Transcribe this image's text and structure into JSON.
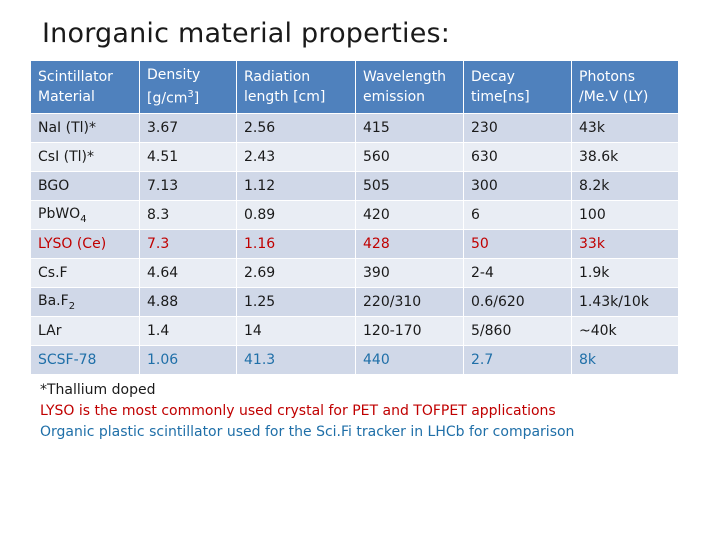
{
  "title": "Inorganic material properties:",
  "table": {
    "headers": [
      {
        "line1": "Scintillator",
        "line2": "Material"
      },
      {
        "line1": "Density",
        "line2": "[g/cm",
        "sup": "3",
        "after": "]"
      },
      {
        "line1": "Radiation",
        "line2": "length [cm]"
      },
      {
        "line1": "Wavelength",
        "line2": "emission"
      },
      {
        "line1": "Decay",
        "line2": "time[ns]"
      },
      {
        "line1": "Photons",
        "line2": "/Me.V (LY)"
      }
    ],
    "rows": [
      {
        "material": "NaI (Tl)*",
        "density": "3.67",
        "radlen": "2.56",
        "wavelength": "415",
        "decay": "230",
        "photons": "43k"
      },
      {
        "material": "CsI (Tl)*",
        "density": "4.51",
        "radlen": "2.43",
        "wavelength": "560",
        "decay": "630",
        "photons": "38.6k"
      },
      {
        "material": "BGO",
        "density": "7.13",
        "radlen": "1.12",
        "wavelength": "505",
        "decay": "300",
        "photons": "8.2k"
      },
      {
        "material": "PbWO",
        "material_sub": "4",
        "density": "8.3",
        "radlen": "0.89",
        "wavelength": "420",
        "decay": "6",
        "photons": "100"
      },
      {
        "material": "LYSO (Ce)",
        "density": "7.3",
        "radlen": "1.16",
        "wavelength": "428",
        "decay": "50",
        "photons": "33k"
      },
      {
        "material": "Cs.F",
        "density": "4.64",
        "radlen": "2.69",
        "wavelength": "390",
        "decay": "2-4",
        "photons": "1.9k"
      },
      {
        "material": "Ba.F",
        "material_sub": "2",
        "density": "4.88",
        "radlen": "1.25",
        "wavelength": "220/310",
        "decay": "0.6/620",
        "photons": "1.43k/10k"
      },
      {
        "material": "LAr",
        "density": "1.4",
        "radlen": "14",
        "wavelength": "120-170",
        "decay": "5/860",
        "photons": "~40k"
      },
      {
        "material": "SCSF-78",
        "density": "1.06",
        "radlen": "41.3",
        "wavelength": "440",
        "decay": "2.7",
        "photons": "8k"
      }
    ]
  },
  "notes": {
    "thallium": "*Thallium doped",
    "lyso": "LYSO is the most commonly used crystal for PET and TOFPET applications",
    "organic": "Organic plastic scintillator used for the Sci.Fi tracker in LHCb for comparison"
  },
  "colors": {
    "header_bg": "#4f81bd",
    "row_odd": "#d0d8e8",
    "row_even": "#e9edf4",
    "red_text": "#c00000",
    "blue_text": "#1f6fa8"
  }
}
